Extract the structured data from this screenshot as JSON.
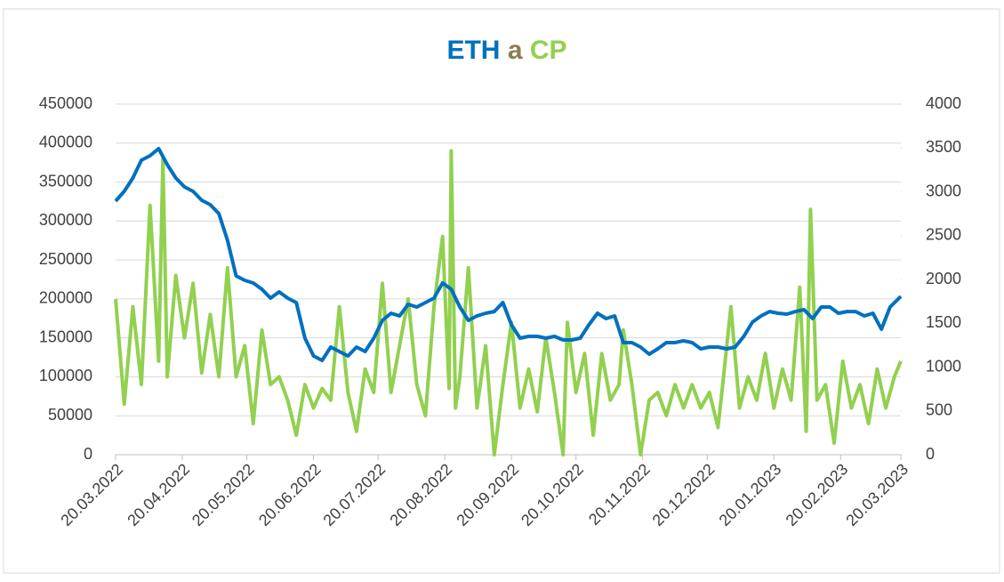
{
  "chart_data": {
    "type": "line",
    "title": [
      "ETH",
      "a",
      "CP"
    ],
    "title_colors": [
      "#0070c0",
      "#8b7d4e",
      "#92d050"
    ],
    "xlim": [
      0,
      365
    ],
    "xticks": [
      {
        "value": 0,
        "label": "20.03.2022"
      },
      {
        "value": 31,
        "label": "20.04.2022"
      },
      {
        "value": 61,
        "label": "20.05.2022"
      },
      {
        "value": 92,
        "label": "20.06.2022"
      },
      {
        "value": 122,
        "label": "20.07.2022"
      },
      {
        "value": 153,
        "label": "20.08.2022"
      },
      {
        "value": 184,
        "label": "20.09.2022"
      },
      {
        "value": 214,
        "label": "20.10.2022"
      },
      {
        "value": 245,
        "label": "20.11.2022"
      },
      {
        "value": 275,
        "label": "20.12.2022"
      },
      {
        "value": 306,
        "label": "20.01.2023"
      },
      {
        "value": 337,
        "label": "20.02.2023"
      },
      {
        "value": 365,
        "label": "20.03.2023"
      }
    ],
    "ylim": [
      0,
      450000
    ],
    "yticks": [
      0,
      50000,
      100000,
      150000,
      200000,
      250000,
      300000,
      350000,
      400000,
      450000
    ],
    "y2lim": [
      0,
      4000
    ],
    "y2ticks": [
      0,
      500,
      1000,
      1500,
      2000,
      2500,
      3000,
      3500,
      4000
    ],
    "grid": true,
    "series": [
      {
        "name": "CP",
        "color": "#92d050",
        "axis": "y",
        "x": [
          0,
          4,
          8,
          12,
          16,
          20,
          22,
          24,
          28,
          32,
          36,
          40,
          44,
          48,
          52,
          56,
          60,
          64,
          68,
          72,
          76,
          80,
          84,
          88,
          92,
          96,
          100,
          104,
          108,
          112,
          116,
          120,
          124,
          128,
          132,
          136,
          140,
          144,
          148,
          152,
          155,
          156,
          158,
          160,
          164,
          168,
          172,
          176,
          180,
          184,
          188,
          192,
          196,
          200,
          204,
          208,
          210,
          214,
          218,
          222,
          226,
          230,
          234,
          236,
          240,
          244,
          248,
          252,
          256,
          260,
          264,
          268,
          272,
          276,
          280,
          282,
          286,
          290,
          294,
          298,
          302,
          306,
          310,
          314,
          318,
          321,
          323,
          326,
          330,
          334,
          338,
          342,
          346,
          350,
          354,
          358,
          362,
          365
        ],
        "values": [
          200000,
          65000,
          190000,
          90000,
          320000,
          120000,
          380000,
          100000,
          230000,
          150000,
          220000,
          105000,
          180000,
          100000,
          240000,
          100000,
          140000,
          40000,
          160000,
          90000,
          100000,
          70000,
          25000,
          90000,
          60000,
          85000,
          70000,
          190000,
          80000,
          30000,
          110000,
          80000,
          220000,
          80000,
          140000,
          200000,
          90000,
          50000,
          190000,
          280000,
          85000,
          390000,
          60000,
          100000,
          240000,
          60000,
          140000,
          0,
          90000,
          170000,
          60000,
          110000,
          55000,
          150000,
          80000,
          0,
          170000,
          80000,
          130000,
          25000,
          130000,
          70000,
          90000,
          160000,
          90000,
          0,
          70000,
          80000,
          50000,
          90000,
          60000,
          90000,
          60000,
          80000,
          35000,
          85000,
          190000,
          60000,
          100000,
          70000,
          130000,
          60000,
          110000,
          70000,
          215000,
          30000,
          315000,
          70000,
          90000,
          15000,
          120000,
          60000,
          90000,
          40000,
          110000,
          60000,
          100000,
          120000
        ]
      },
      {
        "name": "ETH",
        "color": "#0070c0",
        "axis": "y2",
        "x": [
          0,
          4,
          8,
          12,
          16,
          20,
          24,
          28,
          32,
          36,
          40,
          44,
          48,
          52,
          56,
          60,
          64,
          68,
          72,
          76,
          80,
          84,
          88,
          92,
          96,
          100,
          104,
          108,
          112,
          116,
          120,
          124,
          128,
          132,
          136,
          140,
          144,
          148,
          152,
          156,
          160,
          164,
          168,
          172,
          176,
          180,
          184,
          188,
          192,
          196,
          200,
          204,
          208,
          212,
          216,
          220,
          224,
          228,
          232,
          236,
          240,
          244,
          248,
          252,
          256,
          260,
          264,
          268,
          272,
          276,
          280,
          284,
          288,
          292,
          296,
          300,
          304,
          308,
          312,
          316,
          320,
          324,
          328,
          332,
          336,
          340,
          344,
          348,
          352,
          356,
          360,
          365
        ],
        "values": [
          2893,
          3005,
          3157,
          3360,
          3411,
          3492,
          3310,
          3157,
          3056,
          3005,
          2904,
          2853,
          2751,
          2447,
          2041,
          1990,
          1959,
          1888,
          1787,
          1858,
          1787,
          1736,
          1330,
          1127,
          1076,
          1228,
          1178,
          1127,
          1228,
          1178,
          1330,
          1533,
          1614,
          1584,
          1716,
          1685,
          1736,
          1787,
          1959,
          1888,
          1685,
          1533,
          1584,
          1614,
          1634,
          1736,
          1482,
          1330,
          1350,
          1350,
          1330,
          1350,
          1310,
          1310,
          1330,
          1482,
          1614,
          1553,
          1584,
          1279,
          1279,
          1228,
          1147,
          1208,
          1279,
          1279,
          1300,
          1279,
          1208,
          1228,
          1228,
          1208,
          1228,
          1350,
          1513,
          1584,
          1634,
          1614,
          1604,
          1634,
          1655,
          1553,
          1685,
          1685,
          1614,
          1634,
          1634,
          1584,
          1614,
          1432,
          1685,
          1807
        ]
      }
    ]
  }
}
